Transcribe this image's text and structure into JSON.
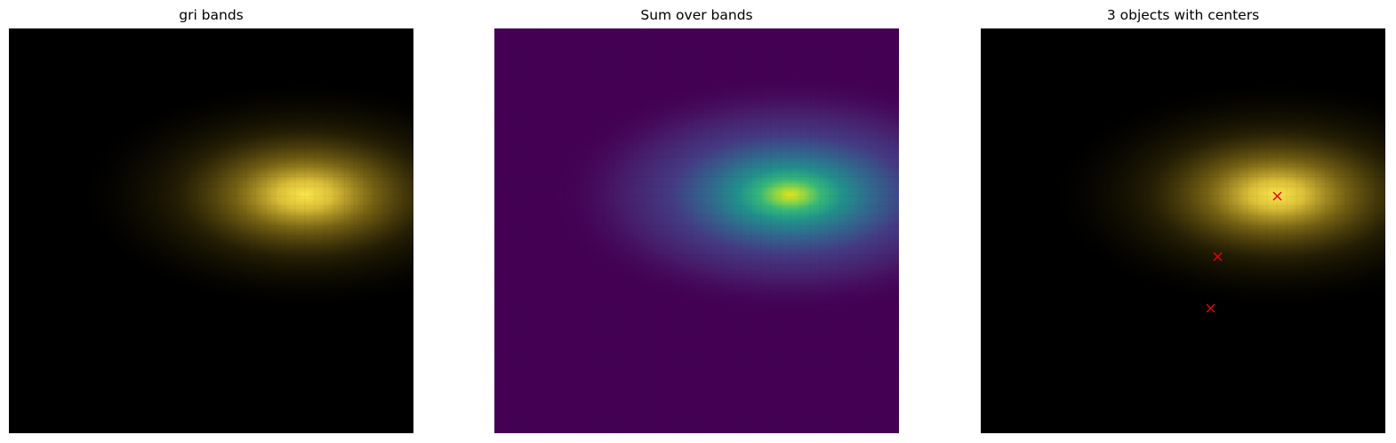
{
  "panels": [
    {
      "title": "gri bands"
    },
    {
      "title": "Sum over bands"
    },
    {
      "title": "3 objects with centers"
    }
  ],
  "markers": {
    "color": "#e8000b",
    "count": 3,
    "symbol": "x-icon"
  },
  "colors": {
    "core": "#f5e240",
    "glow": "#c8a830",
    "viridis_low": "#440154",
    "viridis_mid": "#21908c",
    "viridis_high": "#fde725"
  }
}
